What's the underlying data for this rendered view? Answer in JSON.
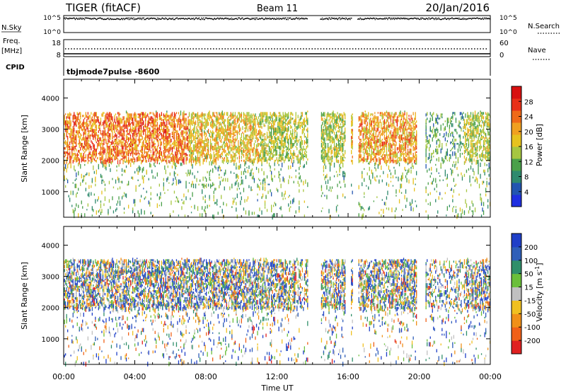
{
  "header": {
    "station": "TIGER (fitACF)",
    "beam": "Beam 11",
    "date": "20/Jan/2016"
  },
  "sky_panel": {
    "label": "N.Sky",
    "left_ticks": [
      "10^5",
      "10^0"
    ],
    "right_ticks": [
      "10^5",
      "10^0"
    ],
    "right_label": "N.Search"
  },
  "freq_panel": {
    "label_line1": "Freq.",
    "label_line2": "[MHz]",
    "left_ticks": [
      18,
      8
    ],
    "right_ticks": [
      60,
      0
    ],
    "right_label": "Nave",
    "cpid_label": "CPID",
    "cpid_text": "tbjmode7pulse -8600"
  },
  "colors": {
    "power_scale": [
      "#1f2fe0",
      "#2255b0",
      "#2f8a6e",
      "#4aa04a",
      "#a6c640",
      "#e6c21e",
      "#f0a020",
      "#ef6a18",
      "#e83018",
      "#d81010"
    ],
    "velocity_scale": [
      "#1f3fc8",
      "#2f5fb8",
      "#2f8f6a",
      "#6abf3a",
      "#c0c0c0",
      "#f0c020",
      "#f09018",
      "#f06018",
      "#e02020"
    ]
  },
  "chart_data": [
    {
      "type": "heatmap",
      "name": "power",
      "ylabel": "Slant Range [km]",
      "yticks": [
        1000,
        2000,
        3000,
        4000
      ],
      "ylim": [
        180,
        4600
      ],
      "xlim": [
        0,
        24
      ],
      "colorbar": {
        "label": "Power [dB]",
        "ticks": [
          4,
          8,
          12,
          16,
          20,
          24,
          28
        ],
        "range": [
          0,
          32
        ]
      }
    },
    {
      "type": "heatmap",
      "name": "velocity",
      "ylabel": "Slant Range [km]",
      "yticks": [
        1000,
        2000,
        3000,
        4000
      ],
      "ylim": [
        180,
        4600
      ],
      "xlim": [
        0,
        24
      ],
      "xlabel": "Time UT",
      "xticks": [
        "00:00",
        "04:00",
        "08:00",
        "12:00",
        "16:00",
        "20:00",
        "00:00"
      ],
      "colorbar": {
        "label": "Velocity [m s^-1]",
        "ticks": [
          "200",
          "100",
          "50",
          "15",
          "-15",
          "-50",
          "-100",
          "-200"
        ]
      }
    }
  ]
}
